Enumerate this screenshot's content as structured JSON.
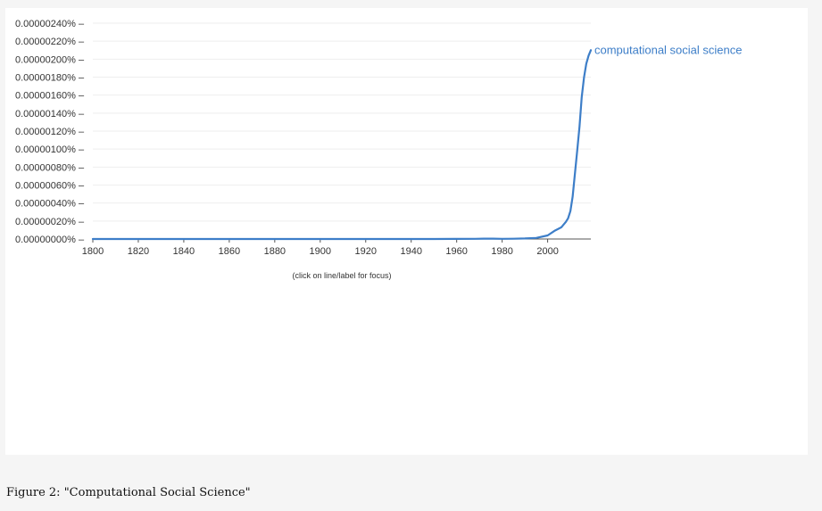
{
  "caption": "Figure 2: \"Computational Social Science\"",
  "hint": "(click on line/label for focus)",
  "colors": {
    "series": "#3d7ec8",
    "axis": "#555555",
    "grid": "#eeeeee"
  },
  "chart_data": {
    "type": "line",
    "title": "",
    "xlabel": "",
    "ylabel": "",
    "xlim": [
      1800,
      2019
    ],
    "ylim": [
      0,
      2.4e-06
    ],
    "x_ticks": [
      "1800",
      "1820",
      "1840",
      "1860",
      "1880",
      "1900",
      "1920",
      "1940",
      "1960",
      "1980",
      "2000"
    ],
    "y_ticks": [
      "0.00000000%",
      "0.00000020%",
      "0.00000040%",
      "0.00000060%",
      "0.00000080%",
      "0.00000100%",
      "0.00000120%",
      "0.00000140%",
      "0.00000160%",
      "0.00000180%",
      "0.00000200%",
      "0.00000220%",
      "0.00000240%"
    ],
    "grid": true,
    "legend": "label at line end",
    "series": [
      {
        "name": "computational social science",
        "x": [
          1800,
          1850,
          1900,
          1950,
          1968,
          1972,
          1976,
          1980,
          1985,
          1990,
          1995,
          2000,
          2003,
          2006,
          2008,
          2009,
          2010,
          2011,
          2012,
          2013,
          2014,
          2015,
          2016,
          2017,
          2018,
          2019
        ],
        "values": [
          0,
          0,
          0,
          0,
          2e-09,
          4e-09,
          4e-09,
          2e-09,
          3e-09,
          6e-09,
          1.2e-08,
          4e-08,
          9e-08,
          1.3e-07,
          1.9e-07,
          2.3e-07,
          3.1e-07,
          4.7e-07,
          7.3e-07,
          9.8e-07,
          1.25e-06,
          1.58e-06,
          1.8e-06,
          1.95e-06,
          2.04e-06,
          2.1e-06
        ]
      }
    ]
  }
}
